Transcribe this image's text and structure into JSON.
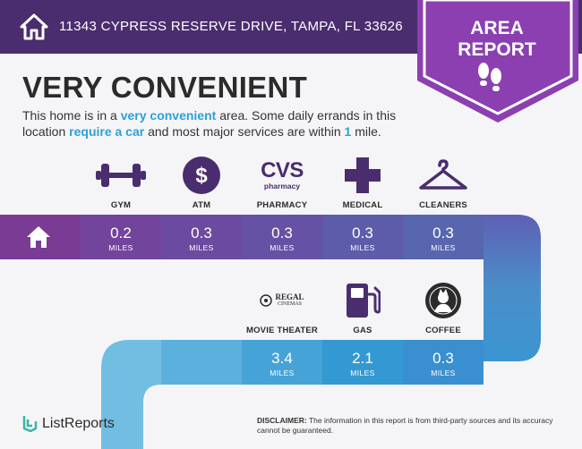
{
  "header": {
    "address": "11343 CYPRESS RESERVE DRIVE, TAMPA, FL 33626",
    "home_icon": "home-icon"
  },
  "badge": {
    "line1": "AREA",
    "line2": "REPORT",
    "icon": "footprints-icon"
  },
  "title": "VERY CONVENIENT",
  "description": {
    "p1": "This home is in a ",
    "h1": "very convenient",
    "p2": " area. Some daily errands in this location ",
    "h2": "require a car",
    "p3": " and most major services are within ",
    "h3": "1",
    "p4": " mile."
  },
  "row1": [
    {
      "label": "GYM",
      "value": "0.2",
      "unit": "MILES",
      "icon": "dumbbell-icon"
    },
    {
      "label": "ATM",
      "value": "0.3",
      "unit": "MILES",
      "icon": "dollar-icon"
    },
    {
      "label": "PHARMACY",
      "value": "0.3",
      "unit": "MILES",
      "icon": "cvs-pharmacy-logo",
      "logo_top": "CVS",
      "logo_bottom": "pharmacy"
    },
    {
      "label": "MEDICAL",
      "value": "0.3",
      "unit": "MILES",
      "icon": "medical-cross-icon"
    },
    {
      "label": "CLEANERS",
      "value": "0.3",
      "unit": "MILES",
      "icon": "hanger-icon"
    }
  ],
  "row2": [
    {
      "label": "MOVIE THEATER",
      "value": "3.4",
      "unit": "MILES",
      "icon": "regal-cinemas-logo",
      "logo_top": "REGAL",
      "logo_bottom": "CINEMAS"
    },
    {
      "label": "GAS",
      "value": "2.1",
      "unit": "MILES",
      "icon": "gas-pump-icon"
    },
    {
      "label": "COFFEE",
      "value": "0.3",
      "unit": "MILES",
      "icon": "starbucks-logo"
    }
  ],
  "footer": {
    "brand": "ListReports",
    "disclaimer_label": "DISCLAIMER:",
    "disclaimer_text": " The information in this report is from third-party sources and its accuracy cannot be guaranteed."
  }
}
